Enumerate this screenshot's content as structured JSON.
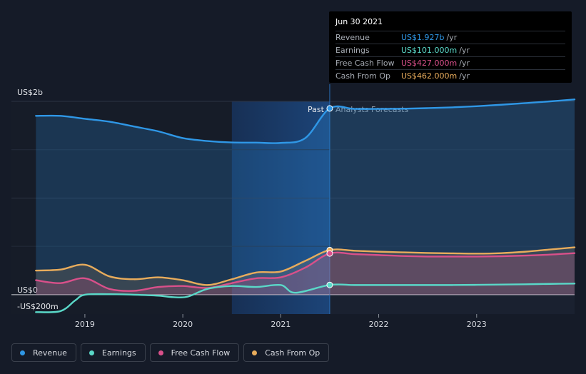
{
  "chart_data": {
    "type": "line",
    "y_top_label": "US$2b",
    "y_zero_label": "US$0",
    "y_bottom_label": "-US$200m",
    "ylim": [
      -200,
      2000
    ],
    "x_ticks": [
      "2019",
      "2020",
      "2021",
      "2022",
      "2023"
    ],
    "past_label": "Past",
    "forecast_label": "Analysts Forecasts",
    "divider_x": 2021.5,
    "highlight_range": [
      2020.5,
      2021.5
    ],
    "series": [
      {
        "name": "Revenue",
        "color": "#2f97e6",
        "x": [
          2018.5,
          2018.75,
          2019.0,
          2019.25,
          2019.5,
          2019.75,
          2020.0,
          2020.25,
          2020.5,
          2020.75,
          2021.0,
          2021.25,
          2021.5,
          2021.75,
          2022.0,
          2022.25,
          2022.5,
          2022.75,
          2023.0,
          2023.25,
          2023.5,
          2023.75,
          2024.0
        ],
        "values": [
          1850,
          1850,
          1820,
          1790,
          1740,
          1690,
          1620,
          1590,
          1575,
          1573,
          1570,
          1620,
          1927,
          1922,
          1922,
          1924,
          1930,
          1938,
          1950,
          1965,
          1982,
          2000,
          2020
        ]
      },
      {
        "name": "Earnings",
        "color": "#5ad8c8",
        "x": [
          2018.5,
          2018.75,
          2018.9,
          2019.0,
          2019.25,
          2019.5,
          2019.75,
          2019.9,
          2020.05,
          2020.25,
          2020.5,
          2020.75,
          2021.0,
          2021.15,
          2021.5,
          2021.75,
          2022.0,
          2022.25,
          2022.5,
          2022.75,
          2023.0,
          2023.25,
          2023.5,
          2023.75,
          2024.0
        ],
        "values": [
          -180,
          -170,
          -60,
          0,
          5,
          0,
          -10,
          -25,
          -20,
          60,
          90,
          80,
          100,
          20,
          101,
          100,
          100,
          100,
          100,
          100,
          102,
          105,
          108,
          112,
          115
        ]
      },
      {
        "name": "Free Cash Flow",
        "color": "#d9508a",
        "x": [
          2018.5,
          2018.75,
          2019.0,
          2019.25,
          2019.5,
          2019.75,
          2020.0,
          2020.25,
          2020.5,
          2020.75,
          2021.0,
          2021.25,
          2021.5,
          2021.75,
          2022.0,
          2022.25,
          2022.5,
          2022.75,
          2023.0,
          2023.25,
          2023.5,
          2023.75,
          2024.0
        ],
        "values": [
          150,
          120,
          170,
          60,
          40,
          80,
          90,
          70,
          120,
          170,
          180,
          280,
          427,
          420,
          410,
          400,
          395,
          395,
          395,
          398,
          405,
          415,
          430
        ]
      },
      {
        "name": "Cash From Op",
        "color": "#e8ac5c",
        "x": [
          2018.5,
          2018.75,
          2019.0,
          2019.25,
          2019.5,
          2019.75,
          2020.0,
          2020.25,
          2020.5,
          2020.75,
          2021.0,
          2021.25,
          2021.5,
          2021.75,
          2022.0,
          2022.25,
          2022.5,
          2022.75,
          2023.0,
          2023.25,
          2023.5,
          2023.75,
          2024.0
        ],
        "values": [
          250,
          260,
          310,
          190,
          160,
          180,
          150,
          100,
          160,
          230,
          240,
          350,
          462,
          455,
          445,
          438,
          432,
          428,
          425,
          430,
          445,
          468,
          490
        ]
      }
    ]
  },
  "tooltip": {
    "date": "Jun 30 2021",
    "rows": [
      {
        "label": "Revenue",
        "value": "US$1.927b",
        "unit": "/yr",
        "color": "#2f97e6"
      },
      {
        "label": "Earnings",
        "value": "US$101.000m",
        "unit": "/yr",
        "color": "#5ad8c8"
      },
      {
        "label": "Free Cash Flow",
        "value": "US$427.000m",
        "unit": "/yr",
        "color": "#d9508a"
      },
      {
        "label": "Cash From Op",
        "value": "US$462.000m",
        "unit": "/yr",
        "color": "#e8ac5c"
      }
    ]
  },
  "legend": [
    {
      "label": "Revenue",
      "color": "#2f97e6"
    },
    {
      "label": "Earnings",
      "color": "#5ad8c8"
    },
    {
      "label": "Free Cash Flow",
      "color": "#d9508a"
    },
    {
      "label": "Cash From Op",
      "color": "#e8ac5c"
    }
  ]
}
